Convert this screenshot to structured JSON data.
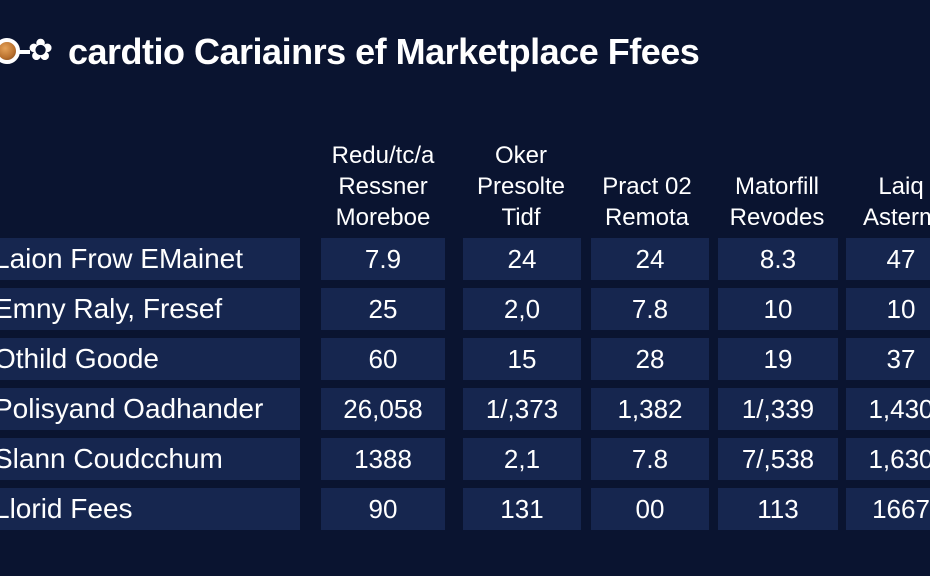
{
  "chart_data": {
    "type": "table",
    "title": "cardtio Cariainrs ef Marketplace Ffees",
    "columns": [
      {
        "lines": [
          "Redu/tc/a",
          "Ressner",
          "Moreboe"
        ]
      },
      {
        "lines": [
          "Oker",
          "Presolte",
          "Tidf"
        ]
      },
      {
        "lines": [
          "Pract 02",
          "Remota"
        ]
      },
      {
        "lines": [
          "Matorfill",
          "Revodes"
        ]
      },
      {
        "lines": [
          "Laiq",
          "Asterm"
        ]
      }
    ],
    "rows": [
      {
        "label": "Laion Frow EMainet",
        "values": [
          "7.9",
          "24",
          "24",
          "8.3",
          "47"
        ]
      },
      {
        "label": "Emny Raly, Fresef",
        "values": [
          "25",
          "2,0",
          "7.8",
          "10",
          "10"
        ]
      },
      {
        "label": "Othild Goode",
        "values": [
          "60",
          "15",
          "28",
          "19",
          "37"
        ]
      },
      {
        "label": "Polisyand Oadhander",
        "values": [
          "26,058",
          "1/,373",
          "1,382",
          "1/,339",
          "1,430"
        ]
      },
      {
        "label": "Slann Coudcchum",
        "values": [
          "1388",
          "2,1",
          "7.8",
          "7/,538",
          "1,630"
        ]
      },
      {
        "label": "Llorid Fees",
        "values": [
          "90",
          "131",
          "00",
          "113",
          "1667"
        ]
      }
    ]
  }
}
